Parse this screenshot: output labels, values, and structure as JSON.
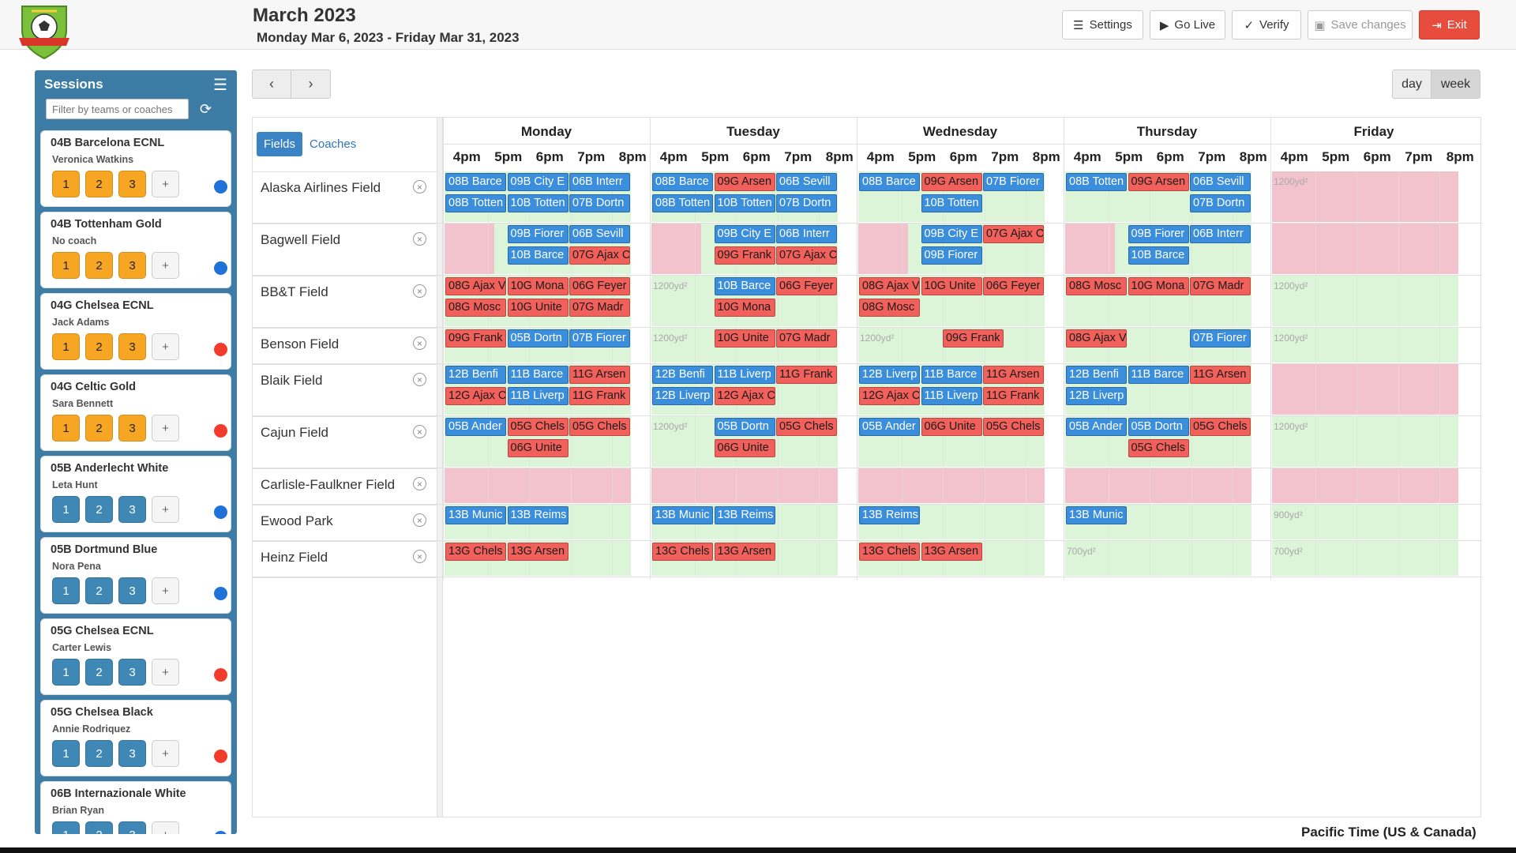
{
  "header": {
    "month": "March 2023",
    "range": "Monday Mar 6, 2023 - Friday Mar 31, 2023"
  },
  "toolbar": {
    "settings": "Settings",
    "go_live": "Go Live",
    "verify": "Verify",
    "save": "Save changes",
    "exit": "Exit"
  },
  "sidebar": {
    "title": "Sessions",
    "filter_placeholder": "Filter by teams or coaches",
    "items": [
      {
        "team": "04B Barcelona ECNL",
        "coach": "Veronica Watkins",
        "style": "orange",
        "dot": "blue"
      },
      {
        "team": "04B Tottenham Gold",
        "coach": "No coach",
        "style": "orange",
        "dot": "blue"
      },
      {
        "team": "04G Chelsea ECNL",
        "coach": "Jack Adams",
        "style": "orange",
        "dot": "red"
      },
      {
        "team": "04G Celtic Gold",
        "coach": "Sara Bennett",
        "style": "orange",
        "dot": "red"
      },
      {
        "team": "05B Anderlecht White",
        "coach": "Leta Hunt",
        "style": "blue",
        "dot": "blue"
      },
      {
        "team": "05B Dortmund Blue",
        "coach": "Nora Pena",
        "style": "blue",
        "dot": "blue"
      },
      {
        "team": "05G Chelsea ECNL",
        "coach": "Carter Lewis",
        "style": "blue",
        "dot": "red"
      },
      {
        "team": "05G Chelsea Black",
        "coach": "Annie Rodriquez",
        "style": "blue",
        "dot": "red"
      },
      {
        "team": "06B Internazionale White",
        "coach": "Brian Ryan",
        "style": "blue",
        "dot": "blue"
      }
    ],
    "session_buttons": [
      "1",
      "2",
      "3",
      "+"
    ]
  },
  "nav": {
    "prev": "‹",
    "next": "›"
  },
  "view": {
    "day": "day",
    "week": "week",
    "active": "week"
  },
  "calendar": {
    "tabs": {
      "fields": "Fields",
      "coaches": "Coaches",
      "active": "fields"
    },
    "days": [
      "Monday",
      "Tuesday",
      "Wednesday",
      "Thursday",
      "Friday"
    ],
    "hours": [
      "4pm",
      "5pm",
      "6pm",
      "7pm",
      "8pm"
    ],
    "fields": [
      {
        "name": "Alaska Airlines Field",
        "lanes": 2
      },
      {
        "name": "Bagwell Field",
        "lanes": 2
      },
      {
        "name": "BB&T Field",
        "lanes": 2
      },
      {
        "name": "Benson Field",
        "lanes": 1
      },
      {
        "name": "Blaik Field",
        "lanes": 2
      },
      {
        "name": "Cajun Field",
        "lanes": 2
      },
      {
        "name": "Carlisle-Faulkner Field",
        "lanes": 1
      },
      {
        "name": "Ewood Park",
        "lanes": 1
      },
      {
        "name": "Heinz Field",
        "lanes": 1
      }
    ],
    "availability": [
      [
        "g",
        "g",
        "g",
        "g",
        "p"
      ],
      [
        "g",
        "g",
        "g",
        "g",
        "p"
      ],
      [
        "g",
        "g",
        "g",
        "g",
        "g"
      ],
      [
        "g",
        "g",
        "g",
        "g",
        "g"
      ],
      [
        "g",
        "g",
        "g",
        "g",
        "p"
      ],
      [
        "g",
        "g",
        "g",
        "g",
        "g"
      ],
      [
        "p",
        "p",
        "p",
        "p",
        "p"
      ],
      [
        "g",
        "g",
        "g",
        "g",
        "g"
      ],
      [
        "g",
        "g",
        "g",
        "g",
        "g"
      ]
    ],
    "pink_blocks": [
      [
        1,
        0
      ],
      [
        1,
        1
      ],
      [
        1,
        2
      ],
      [
        1,
        3
      ]
    ],
    "notes": [
      {
        "f": 0,
        "d": 4,
        "text": "1200yd²"
      },
      {
        "f": 2,
        "d": 1,
        "text": "1200yd²"
      },
      {
        "f": 2,
        "d": 4,
        "text": "1200yd²"
      },
      {
        "f": 3,
        "d": 1,
        "text": "1200yd²"
      },
      {
        "f": 3,
        "d": 2,
        "text": "1200yd²"
      },
      {
        "f": 3,
        "d": 4,
        "text": "1200yd²"
      },
      {
        "f": 5,
        "d": 1,
        "text": "1200yd²"
      },
      {
        "f": 5,
        "d": 4,
        "text": "1200yd²"
      },
      {
        "f": 7,
        "d": 4,
        "text": "900yd²"
      },
      {
        "f": 8,
        "d": 3,
        "text": "700yd²"
      },
      {
        "f": 8,
        "d": 4,
        "text": "700yd²"
      }
    ],
    "events": [
      {
        "f": 0,
        "l": 0,
        "d": 0,
        "s": 0,
        "c": "blue",
        "t": "08B Barce"
      },
      {
        "f": 0,
        "l": 0,
        "d": 0,
        "s": 1,
        "c": "blue",
        "t": "09B City E"
      },
      {
        "f": 0,
        "l": 0,
        "d": 0,
        "s": 2,
        "c": "blue",
        "t": "06B Interr"
      },
      {
        "f": 0,
        "l": 1,
        "d": 0,
        "s": 0,
        "c": "blue",
        "t": "08B Totten"
      },
      {
        "f": 0,
        "l": 1,
        "d": 0,
        "s": 1,
        "c": "blue",
        "t": "10B Totten"
      },
      {
        "f": 0,
        "l": 1,
        "d": 0,
        "s": 2,
        "c": "blue",
        "t": "07B Dortn"
      },
      {
        "f": 0,
        "l": 0,
        "d": 1,
        "s": 0,
        "c": "blue",
        "t": "08B Barce"
      },
      {
        "f": 0,
        "l": 0,
        "d": 1,
        "s": 1,
        "c": "red",
        "t": "09G Arsen"
      },
      {
        "f": 0,
        "l": 0,
        "d": 1,
        "s": 2,
        "c": "blue",
        "t": "06B Sevill"
      },
      {
        "f": 0,
        "l": 1,
        "d": 1,
        "s": 0,
        "c": "blue",
        "t": "08B Totten"
      },
      {
        "f": 0,
        "l": 1,
        "d": 1,
        "s": 1,
        "c": "blue",
        "t": "10B Totten"
      },
      {
        "f": 0,
        "l": 1,
        "d": 1,
        "s": 2,
        "c": "blue",
        "t": "07B Dortn"
      },
      {
        "f": 0,
        "l": 0,
        "d": 2,
        "s": 0,
        "c": "blue",
        "t": "08B Barce"
      },
      {
        "f": 0,
        "l": 0,
        "d": 2,
        "s": 1,
        "c": "red",
        "t": "09G Arsen"
      },
      {
        "f": 0,
        "l": 0,
        "d": 2,
        "s": 2,
        "c": "blue",
        "t": "07B Fiorer"
      },
      {
        "f": 0,
        "l": 1,
        "d": 2,
        "s": 1,
        "c": "blue",
        "t": "10B Totten"
      },
      {
        "f": 0,
        "l": 0,
        "d": 3,
        "s": 0,
        "c": "blue",
        "t": "08B Totten"
      },
      {
        "f": 0,
        "l": 0,
        "d": 3,
        "s": 1,
        "c": "red",
        "t": "09G Arsen"
      },
      {
        "f": 0,
        "l": 0,
        "d": 3,
        "s": 2,
        "c": "blue",
        "t": "06B Sevill"
      },
      {
        "f": 0,
        "l": 1,
        "d": 3,
        "s": 2,
        "c": "blue",
        "t": "07B Dortn"
      },
      {
        "f": 1,
        "l": 0,
        "d": 0,
        "s": 1,
        "c": "blue",
        "t": "09B Fiorer"
      },
      {
        "f": 1,
        "l": 0,
        "d": 0,
        "s": 2,
        "c": "blue",
        "t": "06B Sevill"
      },
      {
        "f": 1,
        "l": 1,
        "d": 0,
        "s": 1,
        "c": "blue",
        "t": "10B Barce"
      },
      {
        "f": 1,
        "l": 1,
        "d": 0,
        "s": 2,
        "c": "red",
        "t": "07G Ajax C"
      },
      {
        "f": 1,
        "l": 0,
        "d": 1,
        "s": 1,
        "c": "blue",
        "t": "09B City E"
      },
      {
        "f": 1,
        "l": 0,
        "d": 1,
        "s": 2,
        "c": "blue",
        "t": "06B Interr"
      },
      {
        "f": 1,
        "l": 1,
        "d": 1,
        "s": 1,
        "c": "red",
        "t": "09G Frank"
      },
      {
        "f": 1,
        "l": 1,
        "d": 1,
        "s": 2,
        "c": "red",
        "t": "07G Ajax C"
      },
      {
        "f": 1,
        "l": 0,
        "d": 2,
        "s": 1,
        "c": "blue",
        "t": "09B City E"
      },
      {
        "f": 1,
        "l": 0,
        "d": 2,
        "s": 2,
        "c": "red",
        "t": "07G Ajax C"
      },
      {
        "f": 1,
        "l": 1,
        "d": 2,
        "s": 1,
        "c": "blue",
        "t": "09B Fiorer"
      },
      {
        "f": 1,
        "l": 0,
        "d": 3,
        "s": 1,
        "c": "blue",
        "t": "09B Fiorer"
      },
      {
        "f": 1,
        "l": 0,
        "d": 3,
        "s": 2,
        "c": "blue",
        "t": "06B Interr"
      },
      {
        "f": 1,
        "l": 1,
        "d": 3,
        "s": 1,
        "c": "blue",
        "t": "10B Barce"
      },
      {
        "f": 2,
        "l": 0,
        "d": 0,
        "s": 0,
        "c": "red",
        "t": "08G Ajax V"
      },
      {
        "f": 2,
        "l": 0,
        "d": 0,
        "s": 1,
        "c": "red",
        "t": "10G Mona"
      },
      {
        "f": 2,
        "l": 0,
        "d": 0,
        "s": 2,
        "c": "red",
        "t": "06G Feyer"
      },
      {
        "f": 2,
        "l": 1,
        "d": 0,
        "s": 0,
        "c": "red",
        "t": "08G Mosc"
      },
      {
        "f": 2,
        "l": 1,
        "d": 0,
        "s": 1,
        "c": "red",
        "t": "10G Unite"
      },
      {
        "f": 2,
        "l": 1,
        "d": 0,
        "s": 2,
        "c": "red",
        "t": "07G Madr"
      },
      {
        "f": 2,
        "l": 0,
        "d": 1,
        "s": 1,
        "c": "blue",
        "t": "10B Barce"
      },
      {
        "f": 2,
        "l": 0,
        "d": 1,
        "s": 2,
        "c": "red",
        "t": "06G Feyer"
      },
      {
        "f": 2,
        "l": 1,
        "d": 1,
        "s": 1,
        "c": "red",
        "t": "10G Mona"
      },
      {
        "f": 2,
        "l": 0,
        "d": 2,
        "s": 0,
        "c": "red",
        "t": "08G Ajax V"
      },
      {
        "f": 2,
        "l": 0,
        "d": 2,
        "s": 1,
        "c": "red",
        "t": "10G Unite"
      },
      {
        "f": 2,
        "l": 0,
        "d": 2,
        "s": 2,
        "c": "red",
        "t": "06G Feyer"
      },
      {
        "f": 2,
        "l": 1,
        "d": 2,
        "s": 0,
        "c": "red",
        "t": "08G Mosc"
      },
      {
        "f": 2,
        "l": 0,
        "d": 3,
        "s": 0,
        "c": "red",
        "t": "08G Mosc"
      },
      {
        "f": 2,
        "l": 0,
        "d": 3,
        "s": 1,
        "c": "red",
        "t": "10G Mona"
      },
      {
        "f": 2,
        "l": 0,
        "d": 3,
        "s": 2,
        "c": "red",
        "t": "07G Madr"
      },
      {
        "f": 3,
        "l": 0,
        "d": 0,
        "s": 0,
        "c": "red",
        "t": "09G Frank"
      },
      {
        "f": 3,
        "l": 0,
        "d": 0,
        "s": 1,
        "c": "blue",
        "t": "05B Dortn"
      },
      {
        "f": 3,
        "l": 0,
        "d": 0,
        "s": 2,
        "c": "blue",
        "t": "07B Fiorer"
      },
      {
        "f": 3,
        "l": 0,
        "d": 1,
        "s": 1,
        "c": "red",
        "t": "10G Unite"
      },
      {
        "f": 3,
        "l": 0,
        "d": 1,
        "s": 2,
        "c": "red",
        "t": "07G Madr"
      },
      {
        "f": 3,
        "l": 0,
        "d": 2,
        "s": 1.35,
        "c": "red",
        "t": "09G Frank"
      },
      {
        "f": 3,
        "l": 0,
        "d": 3,
        "s": 0,
        "c": "red",
        "t": "08G Ajax V"
      },
      {
        "f": 3,
        "l": 0,
        "d": 3,
        "s": 2,
        "c": "blue",
        "t": "07B Fiorer"
      },
      {
        "f": 4,
        "l": 0,
        "d": 0,
        "s": 0,
        "c": "blue",
        "t": "12B Benfi"
      },
      {
        "f": 4,
        "l": 0,
        "d": 0,
        "s": 1,
        "c": "blue",
        "t": "11B Barce"
      },
      {
        "f": 4,
        "l": 0,
        "d": 0,
        "s": 2,
        "c": "red",
        "t": "11G Arsen"
      },
      {
        "f": 4,
        "l": 1,
        "d": 0,
        "s": 0,
        "c": "red",
        "t": "12G Ajax C"
      },
      {
        "f": 4,
        "l": 1,
        "d": 0,
        "s": 1,
        "c": "blue",
        "t": "11B Liverp"
      },
      {
        "f": 4,
        "l": 1,
        "d": 0,
        "s": 2,
        "c": "red",
        "t": "11G Frank"
      },
      {
        "f": 4,
        "l": 0,
        "d": 1,
        "s": 0,
        "c": "blue",
        "t": "12B Benfi"
      },
      {
        "f": 4,
        "l": 0,
        "d": 1,
        "s": 1,
        "c": "blue",
        "t": "11B Liverp"
      },
      {
        "f": 4,
        "l": 0,
        "d": 1,
        "s": 2,
        "c": "red",
        "t": "11G Frank"
      },
      {
        "f": 4,
        "l": 1,
        "d": 1,
        "s": 0,
        "c": "blue",
        "t": "12B Liverp"
      },
      {
        "f": 4,
        "l": 1,
        "d": 1,
        "s": 1,
        "c": "red",
        "t": "12G Ajax C"
      },
      {
        "f": 4,
        "l": 0,
        "d": 2,
        "s": 0,
        "c": "blue",
        "t": "12B Liverp"
      },
      {
        "f": 4,
        "l": 0,
        "d": 2,
        "s": 1,
        "c": "blue",
        "t": "11B Barce"
      },
      {
        "f": 4,
        "l": 0,
        "d": 2,
        "s": 2,
        "c": "red",
        "t": "11G Arsen"
      },
      {
        "f": 4,
        "l": 1,
        "d": 2,
        "s": 0,
        "c": "red",
        "t": "12G Ajax C"
      },
      {
        "f": 4,
        "l": 1,
        "d": 2,
        "s": 1,
        "c": "blue",
        "t": "11B Liverp"
      },
      {
        "f": 4,
        "l": 1,
        "d": 2,
        "s": 2,
        "c": "red",
        "t": "11G Frank"
      },
      {
        "f": 4,
        "l": 0,
        "d": 3,
        "s": 0,
        "c": "blue",
        "t": "12B Benfi"
      },
      {
        "f": 4,
        "l": 0,
        "d": 3,
        "s": 1,
        "c": "blue",
        "t": "11B Barce"
      },
      {
        "f": 4,
        "l": 0,
        "d": 3,
        "s": 2,
        "c": "red",
        "t": "11G Arsen"
      },
      {
        "f": 4,
        "l": 1,
        "d": 3,
        "s": 0,
        "c": "blue",
        "t": "12B Liverp"
      },
      {
        "f": 5,
        "l": 0,
        "d": 0,
        "s": 0,
        "c": "blue",
        "t": "05B Ander"
      },
      {
        "f": 5,
        "l": 0,
        "d": 0,
        "s": 1,
        "c": "red",
        "t": "05G Chels"
      },
      {
        "f": 5,
        "l": 0,
        "d": 0,
        "s": 2,
        "c": "red",
        "t": "05G Chels"
      },
      {
        "f": 5,
        "l": 1,
        "d": 0,
        "s": 1,
        "c": "red",
        "t": "06G Unite"
      },
      {
        "f": 5,
        "l": 0,
        "d": 1,
        "s": 1,
        "c": "blue",
        "t": "05B Dortn"
      },
      {
        "f": 5,
        "l": 0,
        "d": 1,
        "s": 2,
        "c": "red",
        "t": "05G Chels"
      },
      {
        "f": 5,
        "l": 1,
        "d": 1,
        "s": 1,
        "c": "red",
        "t": "06G Unite"
      },
      {
        "f": 5,
        "l": 0,
        "d": 2,
        "s": 0,
        "c": "blue",
        "t": "05B Ander"
      },
      {
        "f": 5,
        "l": 0,
        "d": 2,
        "s": 1,
        "c": "red",
        "t": "06G Unite"
      },
      {
        "f": 5,
        "l": 0,
        "d": 2,
        "s": 2,
        "c": "red",
        "t": "05G Chels"
      },
      {
        "f": 5,
        "l": 0,
        "d": 3,
        "s": 0,
        "c": "blue",
        "t": "05B Ander"
      },
      {
        "f": 5,
        "l": 0,
        "d": 3,
        "s": 1,
        "c": "blue",
        "t": "05B Dortn"
      },
      {
        "f": 5,
        "l": 0,
        "d": 3,
        "s": 2,
        "c": "red",
        "t": "05G Chels"
      },
      {
        "f": 5,
        "l": 1,
        "d": 3,
        "s": 1,
        "c": "red",
        "t": "05G Chels"
      },
      {
        "f": 7,
        "l": 0,
        "d": 0,
        "s": 0,
        "c": "blue",
        "t": "13B Munic"
      },
      {
        "f": 7,
        "l": 0,
        "d": 0,
        "s": 1,
        "c": "blue",
        "t": "13B Reims"
      },
      {
        "f": 7,
        "l": 0,
        "d": 1,
        "s": 0,
        "c": "blue",
        "t": "13B Munic"
      },
      {
        "f": 7,
        "l": 0,
        "d": 1,
        "s": 1,
        "c": "blue",
        "t": "13B Reims"
      },
      {
        "f": 7,
        "l": 0,
        "d": 2,
        "s": 0,
        "c": "blue",
        "t": "13B Reims"
      },
      {
        "f": 7,
        "l": 0,
        "d": 3,
        "s": 0,
        "c": "blue",
        "t": "13B Munic"
      },
      {
        "f": 8,
        "l": 0,
        "d": 0,
        "s": 0,
        "c": "red",
        "t": "13G Chels"
      },
      {
        "f": 8,
        "l": 0,
        "d": 0,
        "s": 1,
        "c": "red",
        "t": "13G Arsen"
      },
      {
        "f": 8,
        "l": 0,
        "d": 1,
        "s": 0,
        "c": "red",
        "t": "13G Chels"
      },
      {
        "f": 8,
        "l": 0,
        "d": 1,
        "s": 1,
        "c": "red",
        "t": "13G Arsen"
      },
      {
        "f": 8,
        "l": 0,
        "d": 2,
        "s": 0,
        "c": "red",
        "t": "13G Chels"
      },
      {
        "f": 8,
        "l": 0,
        "d": 2,
        "s": 1,
        "c": "red",
        "t": "13G Arsen"
      }
    ]
  },
  "timezone": "Pacific Time (US & Canada)"
}
